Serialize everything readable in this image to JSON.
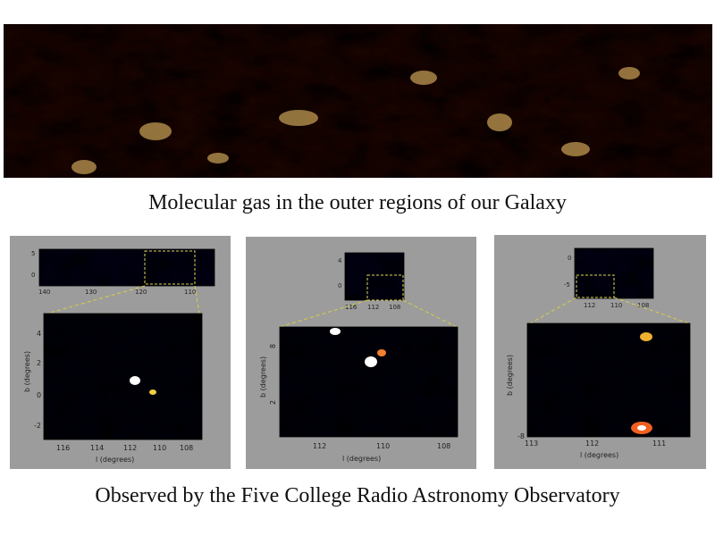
{
  "captions": {
    "top": "Molecular gas in the outer regions of our Galaxy",
    "bottom": "Observed by the Five College Radio Astronomy Observatory"
  },
  "colors": {
    "panel_bg": "#9c9c9c",
    "zoom_line": "#d8d040",
    "banner_base": "#1a0400",
    "banner_hot": "#ffb040"
  },
  "panels": [
    {
      "overview_xticks": [
        "140",
        "130",
        "120",
        "110"
      ],
      "overview_yticks": [
        "5",
        "0"
      ],
      "zoom_xticks": [
        "116",
        "114",
        "112",
        "110",
        "108"
      ],
      "zoom_yticks": [
        "4",
        "2",
        "0",
        "-2"
      ],
      "xlabel": "l  (degrees)",
      "ylabel": "b  (degrees)"
    },
    {
      "overview_xticks": [
        "116",
        "112",
        "108"
      ],
      "overview_yticks": [
        "4",
        "0"
      ],
      "zoom_xticks": [
        "112",
        "110",
        "108"
      ],
      "zoom_yticks": [
        "8",
        "2"
      ],
      "xlabel": "l  (degrees)",
      "ylabel": "b  (degrees)"
    },
    {
      "overview_xticks": [
        "112",
        "110",
        "108"
      ],
      "overview_yticks": [
        "0",
        "-5"
      ],
      "zoom_xticks": [
        "113",
        "112",
        "111"
      ],
      "zoom_yticks": [
        "-8"
      ],
      "xlabel": "l  (degrees)",
      "ylabel": "b  (degrees)"
    }
  ]
}
